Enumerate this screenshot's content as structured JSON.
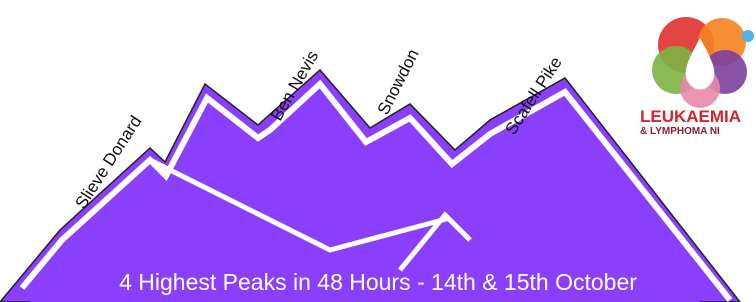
{
  "peaks": [
    "Slieve Donard",
    "Ben Nevis",
    "Snowdon",
    "Scafell Pike"
  ],
  "logo": {
    "line1": "LEUKAEMIA",
    "line2": "& LYMPHOMA NI"
  },
  "banner": "4 Highest Peaks in 48 Hours - 14th & 15th October"
}
